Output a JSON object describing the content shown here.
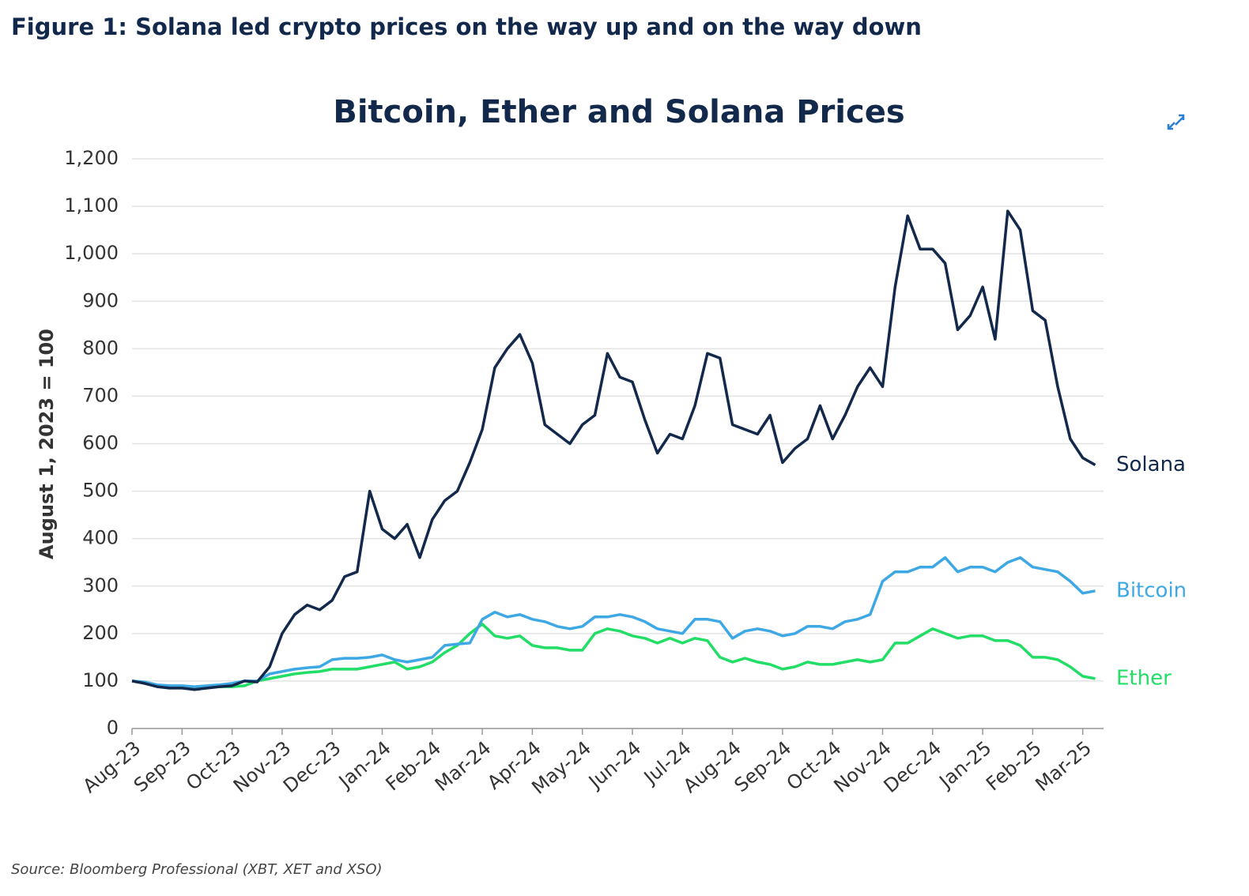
{
  "header": {
    "title": "Figure 1: Solana led crypto prices on the way up and on the way down"
  },
  "chart_data": {
    "type": "line",
    "title": "Bitcoin, Ether and Solana Prices",
    "y_label": "August 1, 2023 = 100",
    "categories": [
      "Aug-23",
      null,
      null,
      null,
      "Sep-23",
      null,
      null,
      null,
      "Oct-23",
      null,
      null,
      null,
      "Nov-23",
      null,
      null,
      null,
      "Dec-23",
      null,
      null,
      null,
      "Jan-24",
      null,
      null,
      null,
      "Feb-24",
      null,
      null,
      null,
      "Mar-24",
      null,
      null,
      null,
      "Apr-24",
      null,
      null,
      null,
      "May-24",
      null,
      null,
      null,
      "Jun-24",
      null,
      null,
      null,
      "Jul-24",
      null,
      null,
      null,
      "Aug-24",
      null,
      null,
      null,
      "Sep-24",
      null,
      null,
      null,
      "Oct-24",
      null,
      null,
      null,
      "Nov-24",
      null,
      null,
      null,
      "Dec-24",
      null,
      null,
      null,
      "Jan-25",
      null,
      null,
      null,
      "Feb-25",
      null,
      null,
      null,
      "Mar-25",
      null
    ],
    "series": [
      {
        "name": "Solana",
        "color": "#13294b",
        "values": [
          100,
          95,
          88,
          85,
          85,
          82,
          85,
          88,
          90,
          100,
          98,
          130,
          200,
          240,
          260,
          250,
          270,
          320,
          330,
          500,
          420,
          400,
          430,
          360,
          440,
          480,
          500,
          560,
          630,
          760,
          800,
          830,
          770,
          640,
          620,
          600,
          640,
          660,
          790,
          740,
          730,
          650,
          580,
          620,
          610,
          680,
          790,
          780,
          640,
          630,
          620,
          660,
          560,
          590,
          610,
          680,
          610,
          660,
          720,
          760,
          720,
          930,
          1080,
          1010,
          1010,
          980,
          840,
          870,
          930,
          820,
          1090,
          1050,
          880,
          860,
          720,
          610,
          570,
          555
        ]
      },
      {
        "name": "Bitcoin",
        "color": "#3ea8e5",
        "values": [
          100,
          98,
          92,
          90,
          90,
          88,
          90,
          92,
          95,
          100,
          100,
          115,
          120,
          125,
          128,
          130,
          145,
          148,
          148,
          150,
          155,
          145,
          140,
          145,
          150,
          175,
          178,
          180,
          230,
          245,
          235,
          240,
          230,
          225,
          215,
          210,
          215,
          235,
          235,
          240,
          235,
          225,
          210,
          205,
          200,
          230,
          230,
          225,
          190,
          205,
          210,
          205,
          195,
          200,
          215,
          215,
          210,
          225,
          230,
          240,
          310,
          330,
          330,
          340,
          340,
          360,
          330,
          340,
          340,
          330,
          350,
          360,
          340,
          335,
          330,
          310,
          285,
          290
        ]
      },
      {
        "name": "Ether",
        "color": "#22dd66",
        "values": [
          100,
          97,
          90,
          88,
          87,
          85,
          88,
          88,
          88,
          90,
          100,
          105,
          110,
          115,
          118,
          120,
          125,
          125,
          125,
          130,
          135,
          140,
          125,
          130,
          140,
          160,
          175,
          200,
          220,
          195,
          190,
          195,
          175,
          170,
          170,
          165,
          165,
          200,
          210,
          205,
          195,
          190,
          180,
          190,
          180,
          190,
          185,
          150,
          140,
          148,
          140,
          135,
          125,
          130,
          140,
          135,
          135,
          140,
          145,
          140,
          145,
          180,
          180,
          195,
          210,
          200,
          190,
          195,
          195,
          185,
          185,
          175,
          150,
          150,
          145,
          130,
          110,
          105
        ]
      }
    ],
    "ylim": [
      0,
      1200
    ],
    "yticks": [
      0,
      100,
      200,
      300,
      400,
      500,
      600,
      700,
      800,
      900,
      {
        "value": 1000,
        "label": "1,000"
      },
      {
        "value": 1100,
        "label": "1,100"
      },
      {
        "value": 1200,
        "label": "1,200"
      }
    ],
    "grid": true
  },
  "footer": {
    "source": "Source: Bloomberg Professional (XBT, XET and XSO)"
  }
}
